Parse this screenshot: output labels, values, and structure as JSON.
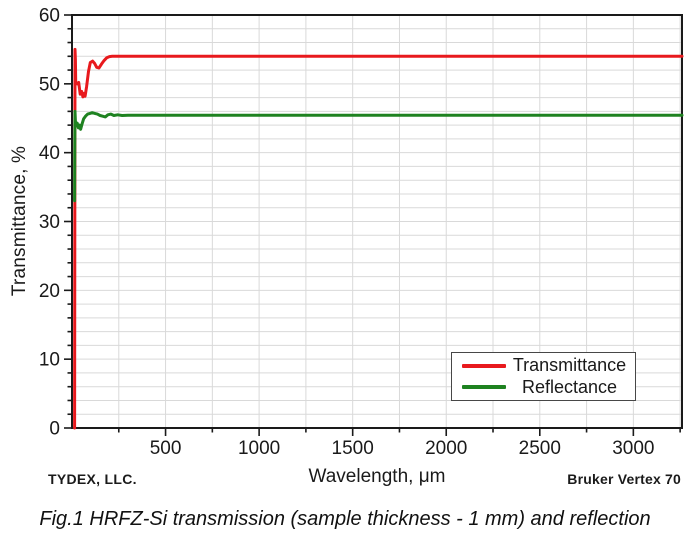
{
  "chart_data": {
    "type": "line",
    "title": "",
    "xlabel": "Wavelength, μm",
    "ylabel": "Transmittance, %",
    "xlim": [
      0,
      3260
    ],
    "ylim": [
      0,
      60
    ],
    "x_major_ticks": [
      500,
      1000,
      1500,
      2000,
      2500,
      3000
    ],
    "x_minor_step": 250,
    "y_major_ticks": [
      0,
      10,
      20,
      30,
      40,
      50,
      60
    ],
    "y_minor_step": 2,
    "grid": "minor-gridlines-on",
    "grid_color": "#d9d9d9",
    "frame_color": "#1a1a1a",
    "legend_position": "lower right",
    "series": [
      {
        "name": "Transmittance",
        "color": "#e8191d",
        "points": [
          [
            14,
            0
          ],
          [
            15,
            28
          ],
          [
            16,
            55
          ],
          [
            18,
            53.5
          ],
          [
            20,
            50.3
          ],
          [
            28,
            50
          ],
          [
            36,
            50.2
          ],
          [
            44,
            48.5
          ],
          [
            52,
            48.9
          ],
          [
            58,
            48.1
          ],
          [
            64,
            48.6
          ],
          [
            70,
            48.2
          ],
          [
            78,
            49.6
          ],
          [
            88,
            51.8
          ],
          [
            98,
            53.1
          ],
          [
            110,
            53.3
          ],
          [
            120,
            53.0
          ],
          [
            132,
            52.4
          ],
          [
            144,
            52.3
          ],
          [
            158,
            52.9
          ],
          [
            172,
            53.4
          ],
          [
            186,
            53.8
          ],
          [
            200,
            53.95
          ],
          [
            215,
            54
          ],
          [
            3260,
            54
          ]
        ]
      },
      {
        "name": "Reflectance",
        "color": "#1e8220",
        "points": [
          [
            14,
            33
          ],
          [
            15,
            41
          ],
          [
            16,
            46
          ],
          [
            18,
            44.6
          ],
          [
            22,
            43.9
          ],
          [
            28,
            44.3
          ],
          [
            34,
            43.6
          ],
          [
            40,
            44.0
          ],
          [
            46,
            43.4
          ],
          [
            54,
            44.2
          ],
          [
            62,
            44.9
          ],
          [
            72,
            45.3
          ],
          [
            84,
            45.6
          ],
          [
            96,
            45.7
          ],
          [
            108,
            45.8
          ],
          [
            122,
            45.7
          ],
          [
            136,
            45.6
          ],
          [
            150,
            45.4
          ],
          [
            164,
            45.3
          ],
          [
            178,
            45.2
          ],
          [
            192,
            45.5
          ],
          [
            208,
            45.6
          ],
          [
            224,
            45.4
          ],
          [
            244,
            45.5
          ],
          [
            268,
            45.4
          ],
          [
            300,
            45.45
          ],
          [
            3260,
            45.45
          ]
        ]
      }
    ],
    "flat_levels": {
      "transmittance_percent": 54,
      "reflectance_percent": 45.5
    }
  },
  "footer": {
    "left": "TYDEX, LLC.",
    "right": "Bruker Vertex 70"
  },
  "caption": "Fig.1 HRFZ-Si transmission (sample thickness - 1 mm) and reflection"
}
